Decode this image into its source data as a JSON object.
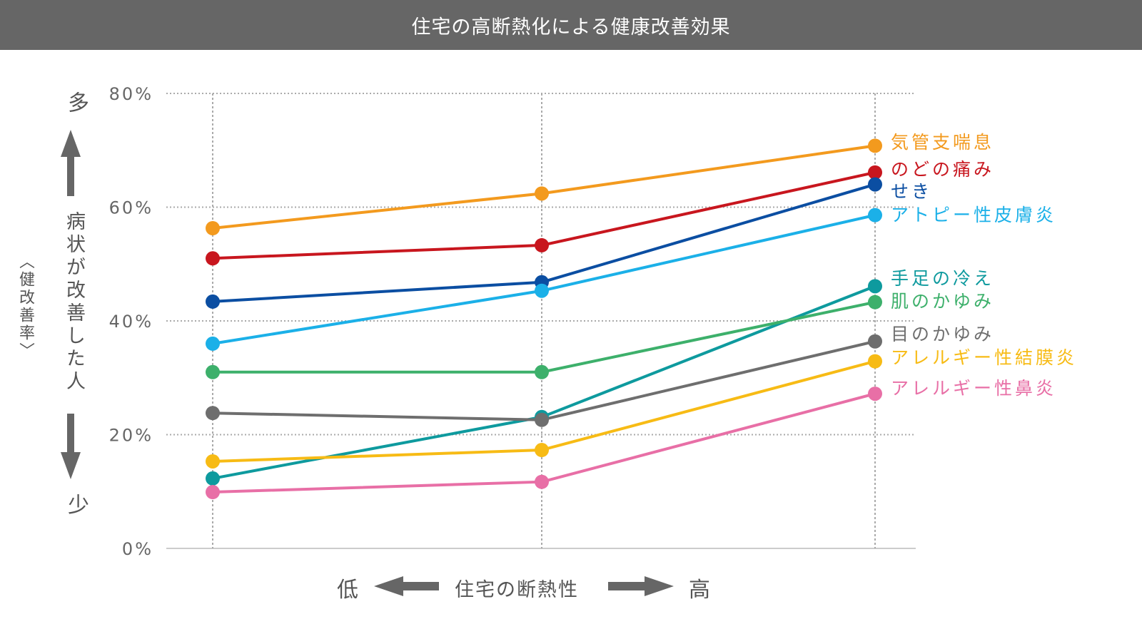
{
  "chart_data": {
    "type": "line",
    "title": "住宅の高断熱化による健康改善効果",
    "xlabel": "住宅の断熱性",
    "x_low_label": "低",
    "x_high_label": "高",
    "ylabel": "病状が改善した人",
    "ylabel_sub": "〈健改善率〉",
    "y_high_label": "多",
    "y_low_label": "少",
    "ylim": [
      0,
      80
    ],
    "yticks": [
      0,
      20,
      40,
      60,
      80
    ],
    "ytick_labels": [
      "0%",
      "20%",
      "40%",
      "60%",
      "80%"
    ],
    "grid": true,
    "x": [
      1,
      2,
      3
    ],
    "series": [
      {
        "name": "気管支喘息",
        "color": "#f39a1e",
        "values": [
          56.3,
          62.4,
          70.8
        ]
      },
      {
        "name": "のどの痛み",
        "color": "#c8161e",
        "values": [
          51.0,
          53.3,
          66.1
        ]
      },
      {
        "name": "せき",
        "color": "#0b4ea2",
        "values": [
          43.4,
          46.8,
          64.0
        ]
      },
      {
        "name": "アトピー性皮膚炎",
        "color": "#1bb0e8",
        "values": [
          36.0,
          45.3,
          58.6
        ]
      },
      {
        "name": "手足の冷え",
        "color": "#0e9a9e",
        "values": [
          12.3,
          23.1,
          46.1
        ]
      },
      {
        "name": "肌のかゆみ",
        "color": "#3db06b",
        "values": [
          31.0,
          31.0,
          43.3
        ]
      },
      {
        "name": "目のかゆみ",
        "color": "#6e6e6e",
        "values": [
          23.8,
          22.6,
          36.4
        ]
      },
      {
        "name": "アレルギー性結膜炎",
        "color": "#f7bb15",
        "values": [
          15.3,
          17.3,
          32.9
        ]
      },
      {
        "name": "アレルギー性鼻炎",
        "color": "#e86fa6",
        "values": [
          9.9,
          11.7,
          27.2
        ]
      }
    ]
  }
}
